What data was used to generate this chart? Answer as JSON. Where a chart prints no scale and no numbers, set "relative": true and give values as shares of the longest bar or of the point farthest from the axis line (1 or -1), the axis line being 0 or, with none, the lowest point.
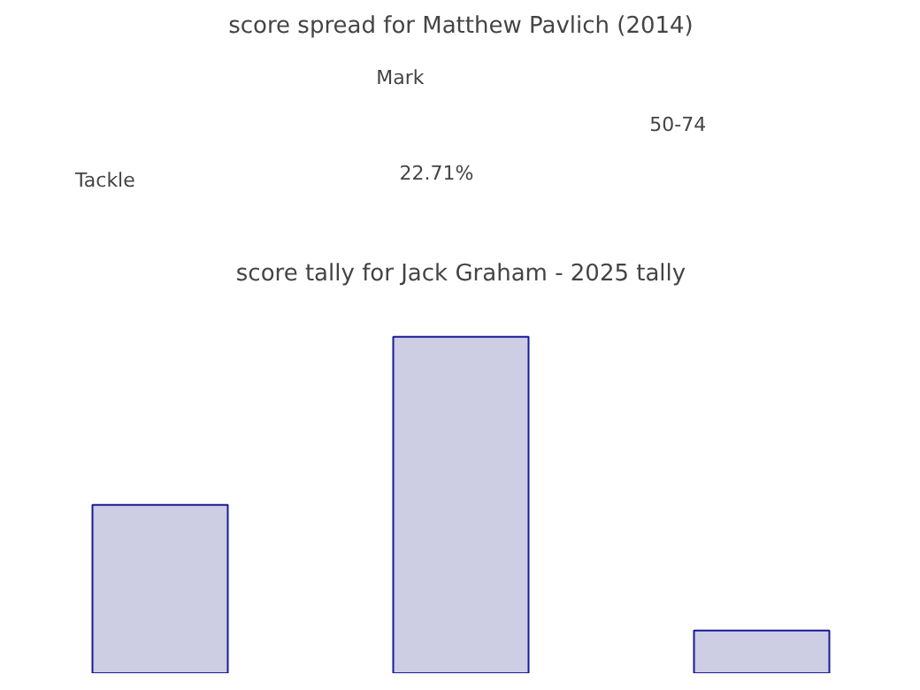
{
  "chart_data": [
    {
      "type": "other",
      "title": "score spread for Matthew Pavlich (2014)",
      "annotations": [
        "Mark",
        "50-74",
        "Tackle",
        "22.71%"
      ]
    },
    {
      "type": "bar",
      "title": "score tally for Jack Graham - 2025 tally",
      "categories": [
        null,
        null,
        null
      ],
      "relative": true,
      "values": [
        0.5,
        1,
        0.127
      ],
      "color": "#cdcde4"
    }
  ]
}
